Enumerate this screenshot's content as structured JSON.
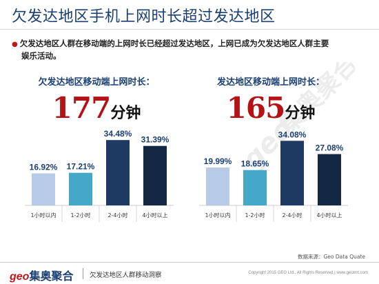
{
  "header": {
    "title": "欠发达地区手机上网时长超过发达地区"
  },
  "bullet": {
    "dot": "●",
    "line1": "欠发达地区人群在移动端的上网时长已经超过发达地区，上网已成为欠发达地区人群主要",
    "line2": "娱乐活动。"
  },
  "watermark": {
    "text": "geo集奥聚合"
  },
  "panels": [
    {
      "title": "欠发达地区移动端上网时长：",
      "number": "177",
      "unit": "分钟"
    },
    {
      "title": "发达地区移动端上网时长：",
      "number": "165",
      "unit": "分钟"
    }
  ],
  "colors": {
    "light_blue": "#b7cbe6",
    "cyan": "#45a8c8",
    "navy": "#1e3a63",
    "dark_navy": "#142844",
    "accent_red": "#b31217",
    "title_blue": "#1a3f73"
  },
  "chart_data": [
    {
      "type": "bar",
      "categories": [
        "1小时以内",
        "1-2小时",
        "2-4小时",
        "4小时以上"
      ],
      "values": [
        16.92,
        17.21,
        34.48,
        31.39
      ],
      "data_labels": [
        "16.92%",
        "17.21%",
        "34.48%",
        "31.39%"
      ],
      "bar_colors": [
        "#b7cbe6",
        "#45a8c8",
        "#1e3a63",
        "#142844"
      ],
      "ylim": [
        0,
        40
      ],
      "grid": false,
      "legend": "none"
    },
    {
      "type": "bar",
      "categories": [
        "1小时以内",
        "1-2小时",
        "2-4小时",
        "4小时以上"
      ],
      "values": [
        19.99,
        18.65,
        34.08,
        27.08
      ],
      "data_labels": [
        "19.99%",
        "18.65%",
        "34.08%",
        "27.08%"
      ],
      "bar_colors": [
        "#b7cbe6",
        "#45a8c8",
        "#1e3a63",
        "#142844"
      ],
      "ylim": [
        0,
        40
      ],
      "grid": false,
      "legend": "none"
    }
  ],
  "source": "数据来源：Geo Data Quate",
  "footer": {
    "logo_geo": "geo",
    "logo_cn": "集奥聚合",
    "caption": "欠发达地区人群移动洞察",
    "copyright": "Copyright 2015 GEO Ltd., All Rights Reserved  |  www.geotmt.com"
  }
}
